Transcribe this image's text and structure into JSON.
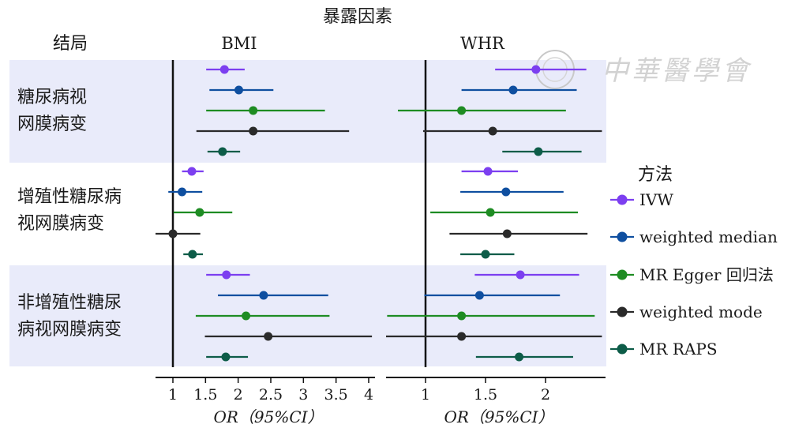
{
  "header": {
    "exposure_title": "暴露因素",
    "outcome_heading": "结局",
    "legend_title": "方法"
  },
  "watermark": "中華醫學會",
  "chart_data": {
    "type": "forest",
    "exposures": [
      "BMI",
      "WHR"
    ],
    "outcomes": [
      [
        "糖尿病视",
        "网膜病变"
      ],
      [
        "增殖性糖尿病",
        "视网膜病变"
      ],
      [
        "非增殖性糖尿",
        "病视网膜病变"
      ]
    ],
    "methods": [
      {
        "name": "IVW",
        "color": "#7c3ff0"
      },
      {
        "name": "weighted median",
        "color": "#0f4fa0"
      },
      {
        "name": "MR Egger 回归法",
        "color": "#1e8c23"
      },
      {
        "name": "weighted mode",
        "color": "#2a2a2a"
      },
      {
        "name": "MR RAPS",
        "color": "#0d5c48"
      }
    ],
    "panels": [
      {
        "exposure": "BMI",
        "xlim": [
          0.7,
          4.05
        ],
        "ticks": [
          1,
          1.5,
          2,
          2.5,
          3,
          3.5,
          4
        ],
        "tick_labels": [
          "1",
          "1.5",
          "2",
          "2.5",
          "3",
          "3.5",
          "4"
        ],
        "ref": 1,
        "xlabel": "OR（95%CI）",
        "data": [
          [
            {
              "or": 1.79,
              "lo": 1.51,
              "hi": 2.1
            },
            {
              "or": 2.01,
              "lo": 1.56,
              "hi": 2.54
            },
            {
              "or": 2.23,
              "lo": 1.51,
              "hi": 3.33
            },
            {
              "or": 2.23,
              "lo": 1.36,
              "hi": 3.7
            },
            {
              "or": 1.76,
              "lo": 1.53,
              "hi": 2.03
            }
          ],
          [
            {
              "or": 1.29,
              "lo": 1.14,
              "hi": 1.47
            },
            {
              "or": 1.14,
              "lo": 0.93,
              "hi": 1.45
            },
            {
              "or": 1.41,
              "lo": 1.01,
              "hi": 1.91
            },
            {
              "or": 1.0,
              "lo": 0.68,
              "hi": 1.42
            },
            {
              "or": 1.3,
              "lo": 1.16,
              "hi": 1.46
            }
          ],
          [
            {
              "or": 1.82,
              "lo": 1.51,
              "hi": 2.18
            },
            {
              "or": 2.39,
              "lo": 1.69,
              "hi": 3.38
            },
            {
              "or": 2.12,
              "lo": 1.35,
              "hi": 3.4
            },
            {
              "or": 2.46,
              "lo": 1.49,
              "hi": 4.05
            },
            {
              "or": 1.81,
              "lo": 1.51,
              "hi": 2.15
            }
          ]
        ]
      },
      {
        "exposure": "WHR",
        "xlim": [
          0.67,
          2.47
        ],
        "ticks": [
          1,
          1.5,
          2
        ],
        "tick_labels": [
          "1",
          "1.5",
          "2"
        ],
        "ref": 1,
        "xlabel": "OR（95%CI）",
        "data": [
          [
            {
              "or": 1.92,
              "lo": 1.58,
              "hi": 2.34
            },
            {
              "or": 1.73,
              "lo": 1.3,
              "hi": 2.26
            },
            {
              "or": 1.3,
              "lo": 0.77,
              "hi": 2.17
            },
            {
              "or": 1.56,
              "lo": 0.98,
              "hi": 2.47
            },
            {
              "or": 1.94,
              "lo": 1.64,
              "hi": 2.3
            }
          ],
          [
            {
              "or": 1.52,
              "lo": 1.3,
              "hi": 1.77
            },
            {
              "or": 1.67,
              "lo": 1.29,
              "hi": 2.15
            },
            {
              "or": 1.54,
              "lo": 1.04,
              "hi": 2.27
            },
            {
              "or": 1.68,
              "lo": 1.2,
              "hi": 2.35
            },
            {
              "or": 1.5,
              "lo": 1.29,
              "hi": 1.74
            }
          ],
          [
            {
              "or": 1.79,
              "lo": 1.41,
              "hi": 2.28
            },
            {
              "or": 1.45,
              "lo": 0.99,
              "hi": 2.12
            },
            {
              "or": 1.3,
              "lo": 0.68,
              "hi": 2.41
            },
            {
              "or": 1.3,
              "lo": 0.67,
              "hi": 2.47
            },
            {
              "or": 1.78,
              "lo": 1.42,
              "hi": 2.23
            }
          ]
        ]
      }
    ]
  }
}
